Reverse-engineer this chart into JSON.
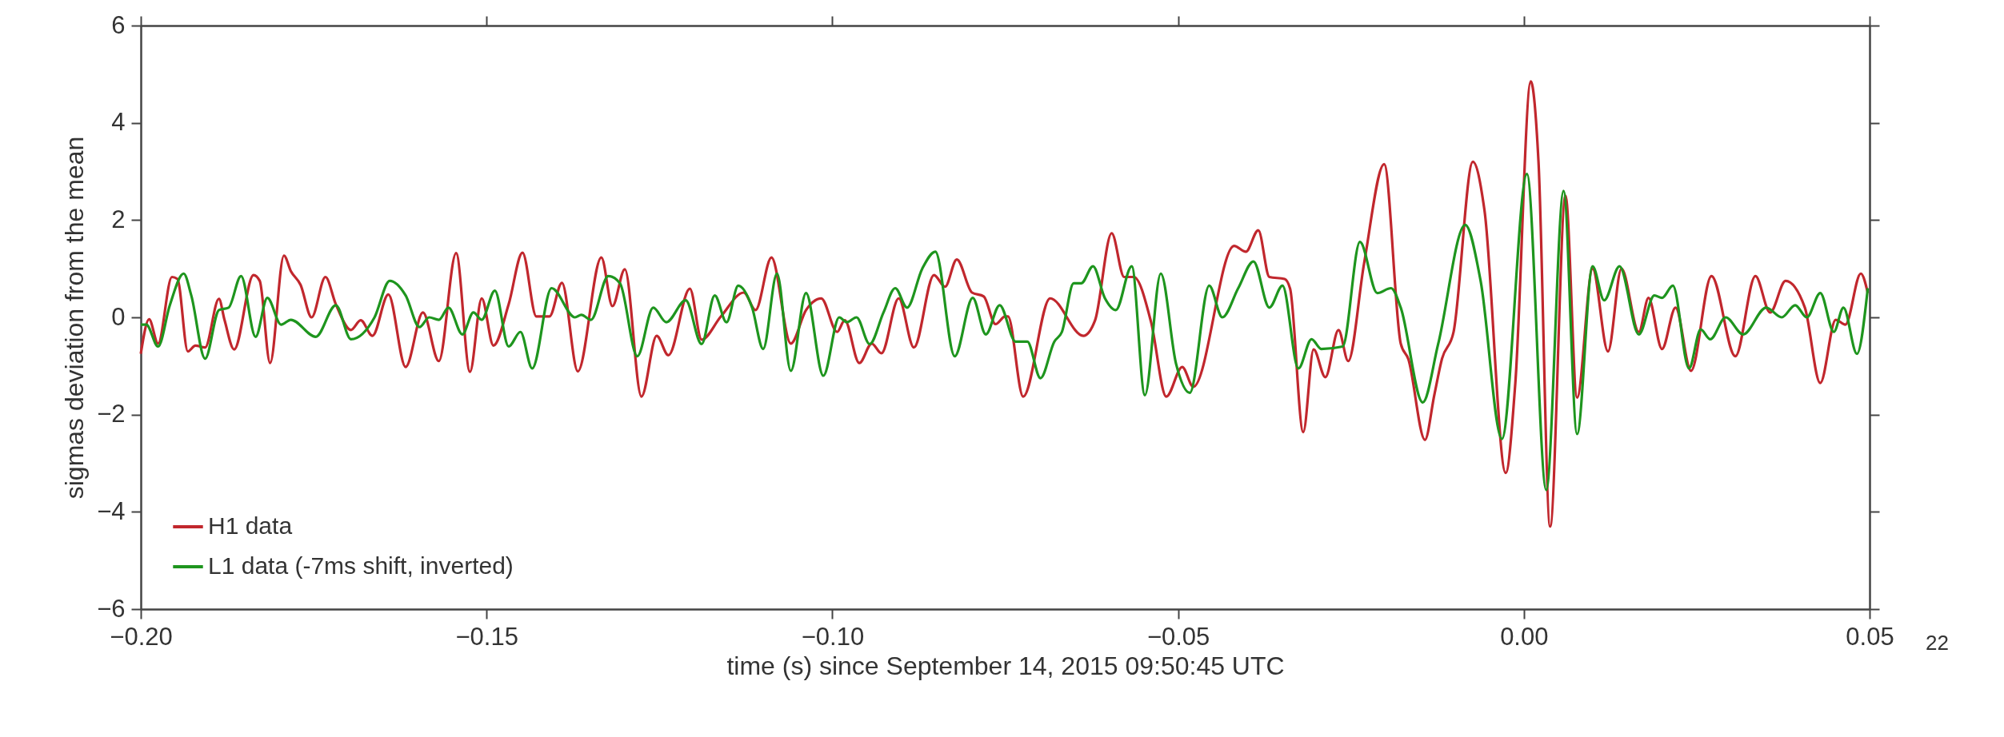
{
  "chart_data": {
    "type": "line",
    "xlabel": "time (s) since September 14, 2015 09:50:45 UTC",
    "ylabel": "sigmas deviation from the mean",
    "xlim": [
      -0.2,
      0.05
    ],
    "xticks": [
      {
        "value": -0.2,
        "label": "−0.20"
      },
      {
        "value": -0.15,
        "label": "−0.15"
      },
      {
        "value": -0.1,
        "label": "−0.10"
      },
      {
        "value": -0.05,
        "label": "−0.05"
      },
      {
        "value": 0,
        "label": "0.00"
      },
      {
        "value": 0.05,
        "label": "0.05"
      }
    ],
    "ylim": [
      -6,
      6
    ],
    "yticks": [
      {
        "value": -6,
        "label": "−6"
      },
      {
        "value": -4,
        "label": "−4"
      },
      {
        "value": -2,
        "label": "−2"
      },
      0,
      2,
      4,
      6
    ],
    "grid": false,
    "legend": "bottom left",
    "line_style": "solid",
    "marker": "none",
    "annotations": [
      "22"
    ],
    "series": [
      {
        "name": "H1 data",
        "color": "#c1272d",
        "x": [
          -0.2,
          -0.1988,
          -0.1975,
          -0.1955,
          -0.1947,
          -0.1932,
          -0.1921,
          -0.1907,
          -0.1887,
          -0.1879,
          -0.1865,
          -0.1837,
          -0.1828,
          -0.1813,
          -0.1793,
          -0.1783,
          -0.1769,
          -0.1753,
          -0.1733,
          -0.1718,
          -0.1696,
          -0.1682,
          -0.1665,
          -0.1642,
          -0.1617,
          -0.1592,
          -0.1569,
          -0.1544,
          -0.1524,
          -0.1507,
          -0.149,
          -0.1468,
          -0.1448,
          -0.1428,
          -0.1409,
          -0.1391,
          -0.1368,
          -0.1334,
          -0.1318,
          -0.13,
          -0.1276,
          -0.1254,
          -0.1237,
          -0.1206,
          -0.1189,
          -0.1161,
          -0.1128,
          -0.1111,
          -0.1088,
          -0.106,
          -0.1038,
          -0.1016,
          -0.0993,
          -0.0982,
          -0.0961,
          -0.0943,
          -0.0929,
          -0.0904,
          -0.0882,
          -0.0853,
          -0.0837,
          -0.082,
          -0.0798,
          -0.0781,
          -0.0764,
          -0.075,
          -0.0746,
          -0.0724,
          -0.0685,
          -0.0637,
          -0.062,
          -0.0596,
          -0.0578,
          -0.0564,
          -0.0539,
          -0.0517,
          -0.0494,
          -0.0478,
          -0.0419,
          -0.0402,
          -0.0384,
          -0.0368,
          -0.0346,
          -0.0338,
          -0.0319,
          -0.0304,
          -0.0287,
          -0.0268,
          -0.0254,
          -0.0231,
          -0.0202,
          -0.0178,
          -0.0167,
          -0.0143,
          -0.01295,
          -0.01183,
          -0.01016,
          -0.00737,
          -0.00569,
          -0.00262,
          -0.00123,
          0.001,
          0.00212,
          0.0038,
          0.00603,
          0.0077,
          0.00994,
          0.01217,
          0.01412,
          0.01663,
          0.01803,
          0.01998,
          0.02194,
          0.02417,
          0.02713,
          0.03059,
          0.03349,
          0.03561,
          0.03785,
          0.04064,
          0.04287,
          0.0451,
          0.0465,
          0.04873,
          0.04974
        ],
        "values": [
          -0.75,
          -0.04,
          -0.54,
          0.83,
          0.79,
          -0.7,
          -0.58,
          -0.62,
          0.38,
          -0.05,
          -0.66,
          0.87,
          0.75,
          -0.94,
          1.27,
          0.95,
          0.67,
          0.0,
          0.83,
          0.27,
          -0.26,
          -0.06,
          -0.38,
          0.47,
          -1.02,
          0.1,
          -0.9,
          1.32,
          -1.12,
          0.39,
          -0.58,
          0.27,
          1.33,
          0.02,
          0.02,
          0.71,
          -1.11,
          1.23,
          0.23,
          0.99,
          -1.63,
          -0.38,
          -0.78,
          0.59,
          -0.46,
          0.02,
          0.51,
          0.15,
          1.23,
          -0.54,
          0.15,
          0.39,
          -0.3,
          -0.06,
          -0.94,
          -0.54,
          -0.74,
          0.39,
          -0.62,
          0.87,
          0.63,
          1.19,
          0.51,
          0.43,
          -0.14,
          0.02,
          0.02,
          -1.63,
          0.39,
          -0.38,
          -0.06,
          1.73,
          0.83,
          0.83,
          -0.1,
          -1.63,
          -1.02,
          -1.43,
          1.47,
          1.35,
          1.79,
          0.83,
          0.79,
          0.59,
          -2.36,
          -0.66,
          -1.23,
          -0.26,
          -0.9,
          1.11,
          3.15,
          -0.54,
          -0.86,
          -2.52,
          -1.6,
          -0.85,
          -0.3,
          3.2,
          2.2,
          -3.2,
          -1.35,
          4.85,
          3.2,
          -4.3,
          2.5,
          -1.65,
          1.0,
          -0.7,
          1.0,
          -0.3,
          0.4,
          -0.65,
          0.2,
          -1.1,
          0.85,
          -0.8,
          0.85,
          0.1,
          0.75,
          0.2,
          -1.35,
          -0.05,
          -0.15,
          0.9,
          0.5
        ]
      },
      {
        "name": "L1 data (-7ms shift, inverted)",
        "color": "#1e951e",
        "x": [
          -0.2,
          -0.1992,
          -0.1975,
          -0.1958,
          -0.1938,
          -0.1927,
          -0.1907,
          -0.1887,
          -0.1873,
          -0.1855,
          -0.1834,
          -0.1817,
          -0.1797,
          -0.1783,
          -0.1747,
          -0.1718,
          -0.1696,
          -0.1662,
          -0.164,
          -0.1617,
          -0.1597,
          -0.1583,
          -0.1569,
          -0.1555,
          -0.1535,
          -0.1519,
          -0.1507,
          -0.1488,
          -0.1468,
          -0.1451,
          -0.1434,
          -0.1406,
          -0.1372,
          -0.1363,
          -0.1349,
          -0.1324,
          -0.1307,
          -0.1282,
          -0.1259,
          -0.124,
          -0.1212,
          -0.1189,
          -0.117,
          -0.1153,
          -0.1136,
          -0.1116,
          -0.11,
          -0.108,
          -0.106,
          -0.1038,
          -0.1013,
          -0.099,
          -0.0979,
          -0.0965,
          -0.0946,
          -0.0926,
          -0.0909,
          -0.0892,
          -0.087,
          -0.0851,
          -0.0823,
          -0.0797,
          -0.0778,
          -0.0758,
          -0.0735,
          -0.0718,
          -0.0699,
          -0.0679,
          -0.0668,
          -0.0651,
          -0.064,
          -0.0623,
          -0.0606,
          -0.059,
          -0.0567,
          -0.0548,
          -0.0525,
          -0.0503,
          -0.0483,
          -0.0455,
          -0.0436,
          -0.0413,
          -0.0391,
          -0.0368,
          -0.0349,
          -0.0326,
          -0.0307,
          -0.0293,
          -0.0262,
          -0.0237,
          -0.0212,
          -0.0192,
          -0.0178,
          -0.01462,
          -0.01239,
          -0.00848,
          -0.00625,
          -0.00318,
          0.00045,
          0.00324,
          0.00575,
          0.0077,
          0.00994,
          0.01161,
          0.01384,
          0.01663,
          0.01887,
          0.01998,
          0.02155,
          0.02389,
          0.02557,
          0.02696,
          0.02919,
          0.03171,
          0.03505,
          0.03729,
          0.03924,
          0.04092,
          0.04287,
          0.04482,
          0.04622,
          0.04817,
          0.04974
        ],
        "values": [
          -0.15,
          -0.15,
          -0.6,
          0.25,
          0.9,
          0.45,
          -0.85,
          0.15,
          0.2,
          0.85,
          -0.4,
          0.4,
          -0.15,
          -0.05,
          -0.4,
          0.25,
          -0.45,
          0.0,
          0.75,
          0.45,
          -0.2,
          0.0,
          -0.05,
          0.2,
          -0.35,
          0.1,
          -0.05,
          0.55,
          -0.6,
          -0.3,
          -1.05,
          0.6,
          0.0,
          0.05,
          -0.05,
          0.85,
          0.7,
          -0.8,
          0.2,
          -0.1,
          0.35,
          -0.55,
          0.45,
          -0.1,
          0.65,
          0.2,
          -0.65,
          0.9,
          -1.1,
          0.5,
          -1.2,
          0.0,
          -0.1,
          0.0,
          -0.55,
          0.1,
          0.6,
          0.2,
          1.0,
          1.35,
          -0.8,
          0.4,
          -0.35,
          0.25,
          -0.5,
          -0.5,
          -1.25,
          -0.5,
          -0.3,
          0.7,
          0.7,
          1.05,
          0.4,
          0.15,
          1.05,
          -1.6,
          0.9,
          -0.95,
          -1.55,
          0.65,
          0.0,
          0.6,
          1.15,
          0.2,
          0.65,
          -1.05,
          -0.45,
          -0.65,
          -0.6,
          1.55,
          0.5,
          0.6,
          0.2,
          -1.75,
          -0.55,
          1.9,
          0.75,
          -2.5,
          2.95,
          -3.55,
          2.6,
          -2.4,
          1.05,
          0.35,
          1.05,
          -0.35,
          0.45,
          0.4,
          0.65,
          -1.05,
          -0.25,
          -0.45,
          0.0,
          -0.35,
          0.2,
          0.0,
          0.25,
          0.0,
          0.5,
          -0.3,
          0.2,
          -0.75,
          0.6
        ]
      }
    ]
  }
}
